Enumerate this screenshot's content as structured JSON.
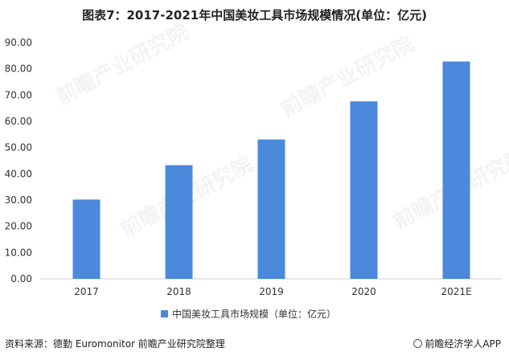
{
  "header": {
    "title": "图表7：2017-2021年中国美妆工具市场规模情况(单位：亿元)"
  },
  "chart_data": {
    "type": "bar",
    "categories": [
      "2017",
      "2018",
      "2019",
      "2020",
      "2021E"
    ],
    "series": [
      {
        "name": "中国美妆工具市场规模（单位：亿元）",
        "values": [
          30.2,
          43.3,
          53.1,
          67.6,
          82.8
        ],
        "color": "#4a89dc"
      }
    ],
    "y_ticks": [
      "0.00",
      "10.00",
      "20.00",
      "30.00",
      "40.00",
      "50.00",
      "60.00",
      "70.00",
      "80.00",
      "90.00"
    ],
    "ylim": [
      0,
      90
    ],
    "grid": false,
    "legend_position": "bottom-center"
  },
  "footer": {
    "source": "资料来源：德勤 Euromonitor 前瞻产业研究院整理",
    "brand": "前瞻经济学人APP",
    "brand_icon": "brand-logo-icon"
  },
  "watermark": {
    "text": "前瞻产业研究院"
  }
}
